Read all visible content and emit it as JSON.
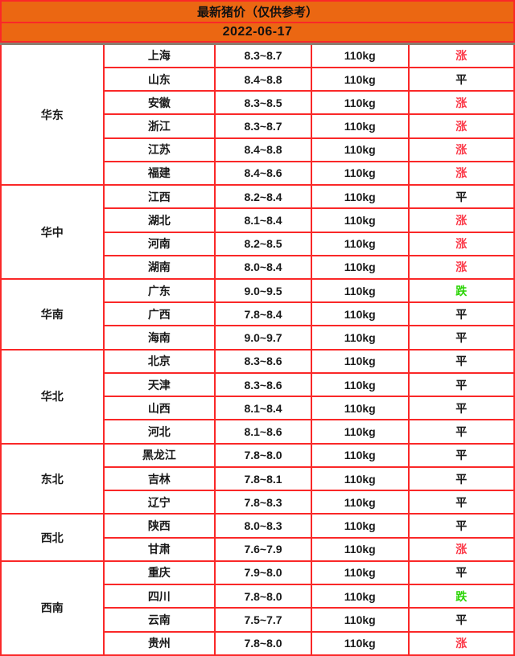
{
  "colors": {
    "header_orange": "#eb6712",
    "grid_red": "#fa2828",
    "header_shadow": "#8a7e70",
    "trend_up_red": "#fb3b4a",
    "trend_flat_black": "#1a1a1a",
    "trend_down_green": "#2bd405"
  },
  "header": {
    "title": "最新猪价（仅供参考）",
    "date": "2022-06-17"
  },
  "chart_data": {
    "type": "table",
    "title": "最新猪价（仅供参考）",
    "date": "2022-06-17",
    "weight_label": "110kg",
    "trend_legend": {
      "up": "涨",
      "flat": "平",
      "down": "跌"
    },
    "regions": [
      {
        "name": "华东",
        "provinces": [
          {
            "province": "上海",
            "price": "8.3~8.7",
            "weight": "110kg",
            "trend": "涨"
          },
          {
            "province": "山东",
            "price": "8.4~8.8",
            "weight": "110kg",
            "trend": "平"
          },
          {
            "province": "安徽",
            "price": "8.3~8.5",
            "weight": "110kg",
            "trend": "涨"
          },
          {
            "province": "浙江",
            "price": "8.3~8.7",
            "weight": "110kg",
            "trend": "涨"
          },
          {
            "province": "江苏",
            "price": "8.4~8.8",
            "weight": "110kg",
            "trend": "涨"
          },
          {
            "province": "福建",
            "price": "8.4~8.6",
            "weight": "110kg",
            "trend": "涨"
          }
        ]
      },
      {
        "name": "华中",
        "provinces": [
          {
            "province": "江西",
            "price": "8.2~8.4",
            "weight": "110kg",
            "trend": "平"
          },
          {
            "province": "湖北",
            "price": "8.1~8.4",
            "weight": "110kg",
            "trend": "涨"
          },
          {
            "province": "河南",
            "price": "8.2~8.5",
            "weight": "110kg",
            "trend": "涨"
          },
          {
            "province": "湖南",
            "price": "8.0~8.4",
            "weight": "110kg",
            "trend": "涨"
          }
        ]
      },
      {
        "name": "华南",
        "provinces": [
          {
            "province": "广东",
            "price": "9.0~9.5",
            "weight": "110kg",
            "trend": "跌"
          },
          {
            "province": "广西",
            "price": "7.8~8.4",
            "weight": "110kg",
            "trend": "平"
          },
          {
            "province": "海南",
            "price": "9.0~9.7",
            "weight": "110kg",
            "trend": "平"
          }
        ]
      },
      {
        "name": "华北",
        "provinces": [
          {
            "province": "北京",
            "price": "8.3~8.6",
            "weight": "110kg",
            "trend": "平"
          },
          {
            "province": "天津",
            "price": "8.3~8.6",
            "weight": "110kg",
            "trend": "平"
          },
          {
            "province": "山西",
            "price": "8.1~8.4",
            "weight": "110kg",
            "trend": "平"
          },
          {
            "province": "河北",
            "price": "8.1~8.6",
            "weight": "110kg",
            "trend": "平"
          }
        ]
      },
      {
        "name": "东北",
        "provinces": [
          {
            "province": "黑龙江",
            "price": "7.8~8.0",
            "weight": "110kg",
            "trend": "平"
          },
          {
            "province": "吉林",
            "price": "7.8~8.1",
            "weight": "110kg",
            "trend": "平"
          },
          {
            "province": "辽宁",
            "price": "7.8~8.3",
            "weight": "110kg",
            "trend": "平"
          }
        ]
      },
      {
        "name": "西北",
        "provinces": [
          {
            "province": "陕西",
            "price": "8.0~8.3",
            "weight": "110kg",
            "trend": "平"
          },
          {
            "province": "甘肃",
            "price": "7.6~7.9",
            "weight": "110kg",
            "trend": "涨"
          }
        ]
      },
      {
        "name": "西南",
        "provinces": [
          {
            "province": "重庆",
            "price": "7.9~8.0",
            "weight": "110kg",
            "trend": "平"
          },
          {
            "province": "四川",
            "price": "7.8~8.0",
            "weight": "110kg",
            "trend": "跌"
          },
          {
            "province": "云南",
            "price": "7.5~7.7",
            "weight": "110kg",
            "trend": "平"
          },
          {
            "province": "贵州",
            "price": "7.8~8.0",
            "weight": "110kg",
            "trend": "涨"
          }
        ]
      }
    ]
  }
}
